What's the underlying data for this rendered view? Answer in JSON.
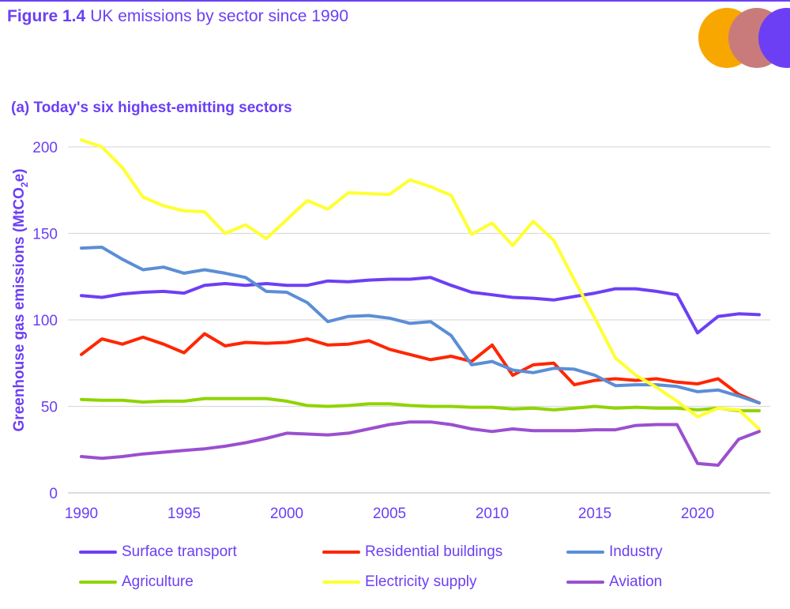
{
  "figure": {
    "number": "Figure 1.4",
    "title": "UK emissions by sector since 1990"
  },
  "subtitle": "(a) Today's six highest-emitting sectors",
  "logo": {
    "name": "three-circles-logo",
    "colors": [
      "#f7a700",
      "#c97b7b",
      "#6c3ff5"
    ]
  },
  "chart_data": {
    "type": "line",
    "ylabel_prefix": "Greenhouse gas emissions (MtCO",
    "ylabel_sub": "2",
    "ylabel_suffix": "e)",
    "xlabel": "",
    "ylim": [
      0,
      200
    ],
    "xlim": [
      1990,
      2023
    ],
    "yticks": [
      0,
      50,
      100,
      150,
      200
    ],
    "xticks": [
      1990,
      1995,
      2000,
      2005,
      2010,
      2015,
      2020
    ],
    "grid": "horizontal",
    "legend_position": "bottom",
    "x": [
      1990,
      1991,
      1992,
      1993,
      1994,
      1995,
      1996,
      1997,
      1998,
      1999,
      2000,
      2001,
      2002,
      2003,
      2004,
      2005,
      2006,
      2007,
      2008,
      2009,
      2010,
      2011,
      2012,
      2013,
      2014,
      2015,
      2016,
      2017,
      2018,
      2019,
      2020,
      2021,
      2022,
      2023
    ],
    "series": [
      {
        "name": "Surface transport",
        "color": "#6c3ff5",
        "values": [
          114,
          113,
          115,
          116,
          116.5,
          115.5,
          120,
          121,
          120,
          121,
          120,
          120,
          122.5,
          122,
          123,
          123.5,
          123.5,
          124.5,
          120,
          116,
          114.5,
          113,
          112.5,
          111.5,
          113.5,
          115.5,
          118,
          118,
          116.5,
          114.5,
          92.5,
          102,
          103.5,
          103
        ]
      },
      {
        "name": "Residential buildings",
        "color": "#ff2600",
        "values": [
          80,
          89,
          86,
          90,
          86,
          81,
          92,
          85,
          87,
          86.5,
          87,
          89,
          85.5,
          86,
          88,
          83,
          80,
          77,
          79,
          76,
          85.5,
          68,
          74,
          75,
          62.5,
          65,
          66,
          65,
          66,
          64,
          63,
          66,
          57,
          52
        ]
      },
      {
        "name": "Industry",
        "color": "#5b8ed6",
        "values": [
          141.5,
          142,
          135,
          129,
          130.5,
          127,
          129,
          127,
          124.5,
          116.5,
          116,
          110,
          99,
          102,
          102.5,
          101,
          98,
          99,
          91,
          74,
          76,
          71,
          69.5,
          72,
          71.5,
          68,
          62,
          62.5,
          62.5,
          61.5,
          58.5,
          59.5,
          56,
          52
        ]
      },
      {
        "name": "Agriculture",
        "color": "#8fd400",
        "values": [
          54,
          53.5,
          53.5,
          52.5,
          53,
          53,
          54.5,
          54.5,
          54.5,
          54.5,
          53,
          50.5,
          50,
          50.5,
          51.5,
          51.5,
          50.5,
          50,
          50,
          49.5,
          49.5,
          48.5,
          49,
          48,
          49,
          50,
          49,
          49.5,
          49,
          49,
          48,
          49,
          47.5,
          47.5
        ]
      },
      {
        "name": "Electricity supply",
        "color": "#ffff33",
        "values": [
          204,
          200,
          188,
          171,
          166,
          163,
          162.5,
          150,
          155,
          147,
          158,
          169,
          164,
          173.5,
          173,
          172.5,
          181,
          177,
          172,
          149.5,
          156,
          143,
          157,
          146,
          123,
          101,
          78,
          68,
          61,
          53,
          44,
          49,
          48,
          37
        ]
      },
      {
        "name": "Aviation",
        "color": "#9b4fd0",
        "values": [
          21,
          20,
          21,
          22.5,
          23.5,
          24.5,
          25.5,
          27,
          29,
          31.5,
          34.5,
          34,
          33.5,
          34.5,
          37,
          39.5,
          41,
          41,
          39.5,
          37,
          35.5,
          37,
          36,
          36,
          36,
          36.5,
          36.5,
          39,
          39.5,
          39.5,
          17,
          16,
          31,
          35.5
        ]
      }
    ]
  }
}
